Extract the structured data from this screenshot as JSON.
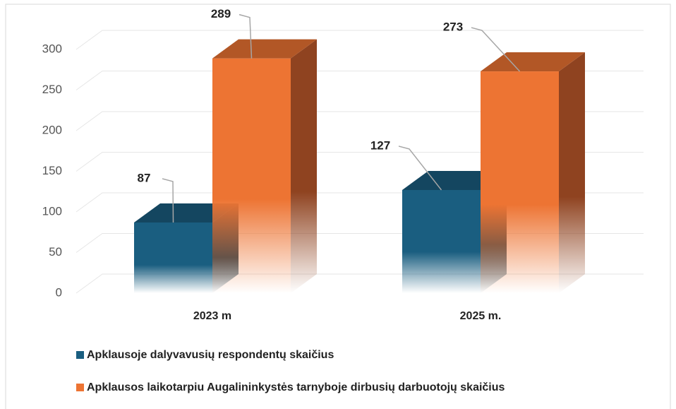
{
  "chart_data": {
    "type": "bar3d",
    "categories": [
      "2023 m",
      "2025 m."
    ],
    "series": [
      {
        "name": "Apklausoje dalyvavusių respondentų skaičius",
        "color": "#1a5e80",
        "values": [
          87,
          127
        ]
      },
      {
        "name": "Apklausos laikotarpiu Augalininkystės tarnyboje dirbusių darbuotojų skaičius",
        "color": "#ed7433",
        "values": [
          289,
          273
        ]
      }
    ],
    "ylim": [
      0,
      300
    ],
    "yticks": [
      0,
      50,
      100,
      150,
      200,
      250,
      300
    ],
    "grid": true,
    "legend": "bottom-left"
  }
}
